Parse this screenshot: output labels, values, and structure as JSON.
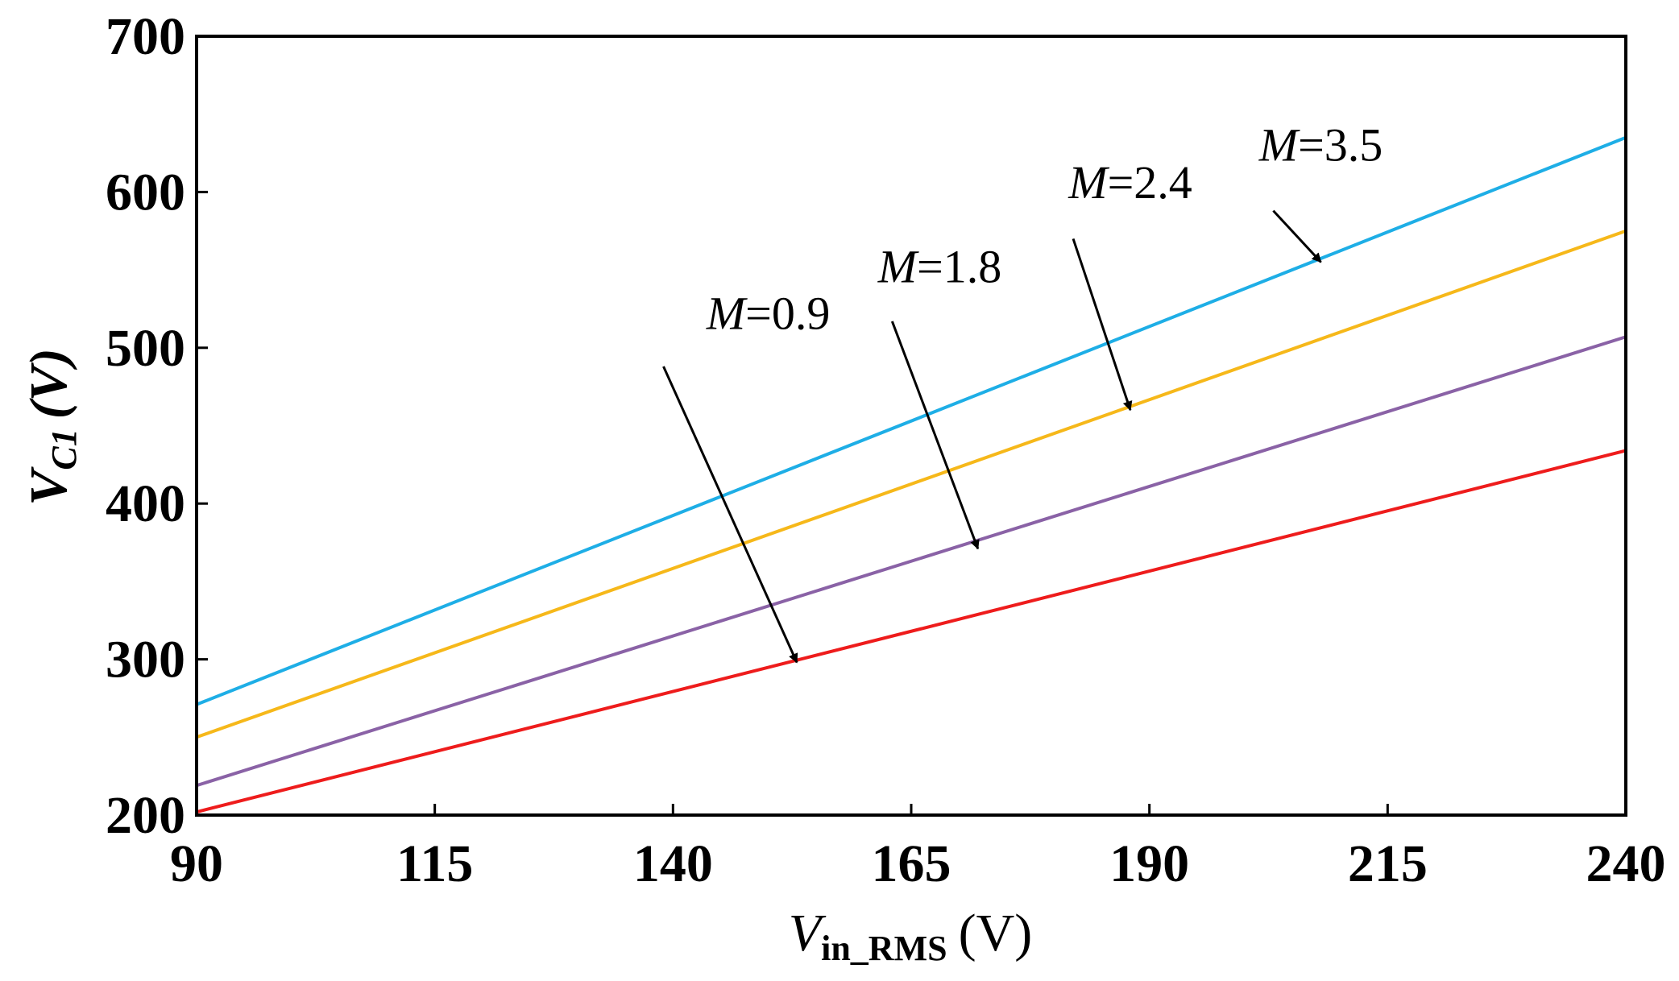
{
  "chart_data": {
    "type": "line",
    "title": "",
    "xlabel": {
      "main": "V",
      "sub": "in_RMS",
      "unit": "(V)"
    },
    "ylabel": {
      "main": "V",
      "sub": "C1",
      "unit": "(V)"
    },
    "xlim": [
      90,
      240
    ],
    "ylim": [
      200,
      700
    ],
    "xticks": [
      90,
      115,
      140,
      165,
      190,
      215,
      240
    ],
    "yticks": [
      200,
      300,
      400,
      500,
      600,
      700
    ],
    "xtick_labels": [
      "90",
      "115",
      "140",
      "165",
      "190",
      "215",
      "240"
    ],
    "ytick_labels": [
      "200",
      "300",
      "400",
      "500",
      "600",
      "700"
    ],
    "grid": false,
    "series": [
      {
        "name": "M=3.5",
        "color": "#1eaee6",
        "x": [
          90,
          240
        ],
        "values": [
          271,
          635
        ]
      },
      {
        "name": "M=2.4",
        "color": "#f6b81a",
        "x": [
          90,
          240
        ],
        "values": [
          250,
          575
        ]
      },
      {
        "name": "M=1.8",
        "color": "#8a62a6",
        "x": [
          90,
          240
        ],
        "values": [
          219,
          507
        ]
      },
      {
        "name": "M=0.9",
        "color": "#ee1c1c",
        "x": [
          90,
          240
        ],
        "values": [
          202,
          434
        ]
      }
    ],
    "annotations": [
      {
        "var": "M",
        "eq": "=3.5",
        "label_at": [
          208,
          620
        ],
        "arrow_from": [
          203,
          588
        ],
        "arrow_to": [
          208,
          555
        ]
      },
      {
        "var": "M",
        "eq": "=2.4",
        "label_at": [
          188,
          596
        ],
        "arrow_from": [
          182,
          570
        ],
        "arrow_to": [
          188,
          460
        ]
      },
      {
        "var": "M",
        "eq": "=1.8",
        "label_at": [
          168,
          542
        ],
        "arrow_from": [
          163,
          517
        ],
        "arrow_to": [
          172,
          371
        ]
      },
      {
        "var": "M",
        "eq": "=0.9",
        "label_at": [
          150,
          512
        ],
        "arrow_from": [
          139,
          488
        ],
        "arrow_to": [
          153,
          298
        ]
      }
    ]
  }
}
